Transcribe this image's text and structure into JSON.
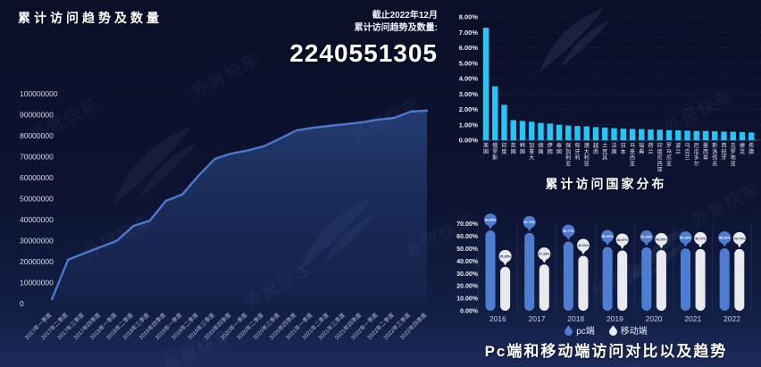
{
  "watermark": {
    "text": "外贸快车"
  },
  "header": {
    "title": "累计访问趋势及数量",
    "note_line1": "截止2022年12月",
    "note_line2": "累计访问趋势及数量:",
    "total": "2240551305"
  },
  "chart_data": [
    {
      "type": "line",
      "title": "累计访问趋势及数量",
      "x": [
        "2017年一季度",
        "2017年二季度",
        "2017年三季度",
        "2017年四季度",
        "2018年一季度",
        "2018年二季度",
        "2018年三季度",
        "2018年四季度",
        "2019年一季度",
        "2019年二季度",
        "2019年三季度",
        "2019年四季度",
        "2020年一季度",
        "2020年二季度",
        "2020年三季度",
        "2020年四季度",
        "2021年一季度",
        "2021年二季度",
        "2021年三季度",
        "2021年四季度",
        "2022年一季度",
        "2022年二季度",
        "2022年三季度",
        "2022年四季度"
      ],
      "values": [
        2000000,
        21000000,
        24000000,
        27000000,
        30000000,
        37000000,
        39500000,
        49000000,
        52000000,
        61000000,
        69000000,
        71500000,
        73000000,
        75000000,
        78700000,
        82500000,
        83800000,
        84700000,
        85500000,
        86400000,
        87700000,
        88500000,
        91500000,
        92000000
      ],
      "ylim": [
        0,
        100000000
      ],
      "ytick_labels": [
        "0",
        "10000000",
        "20000000",
        "30000000",
        "40000000",
        "50000000",
        "60000000",
        "70000000",
        "80000000",
        "90000000",
        "100000000"
      ],
      "line_color": "#4a79cf",
      "area_color": "#3e6fc4",
      "grid": false,
      "legend_position": "none"
    },
    {
      "type": "bar",
      "title": "累计访问国家分布",
      "categories": [
        "美国",
        "俄罗斯",
        "印度",
        "英国",
        "韩国",
        "加拿大",
        "德国",
        "伊朗",
        "泰国",
        "保加利亚",
        "匈牙利",
        "澳大利亚",
        "越南",
        "土耳其",
        "法国",
        "日本",
        "马来西亚",
        "瑞典",
        "荷兰",
        "印度尼西亚",
        "罗马尼亚",
        "波兰",
        "乌克兰",
        "厄瓜多尔",
        "墨西哥",
        "斯洛伐克",
        "西班牙",
        "克罗地亚",
        "捷克",
        "希腊"
      ],
      "values": [
        7.3,
        3.5,
        2.3,
        1.3,
        1.25,
        1.2,
        1.12,
        1.08,
        1.0,
        0.95,
        0.92,
        0.9,
        0.85,
        0.82,
        0.78,
        0.75,
        0.73,
        0.72,
        0.7,
        0.68,
        0.65,
        0.64,
        0.62,
        0.6,
        0.6,
        0.58,
        0.56,
        0.55,
        0.52,
        0.5
      ],
      "unit": "%",
      "ylim": [
        0,
        8
      ],
      "ytick_labels": [
        "0.00%",
        "1.00%",
        "2.00%",
        "3.00%",
        "4.00%",
        "5.00%",
        "6.00%",
        "7.00%",
        "8.00%"
      ],
      "bar_color": "#25c5f8",
      "grid": "dotted",
      "legend_position": "none"
    },
    {
      "type": "bar",
      "title": "Pc端和移动端访问对比以及趋势",
      "categories": [
        "2016",
        "2017",
        "2018",
        "2019",
        "2020",
        "2021",
        "2022"
      ],
      "series": [
        {
          "name": "pc端",
          "color": "#4d7cd1",
          "values": [
            64.65,
            62.72,
            55.77,
            51.43,
            51.05,
            50.29,
            50.26
          ]
        },
        {
          "name": "移动端",
          "color": "#e9eaee",
          "values": [
            35.35,
            37.28,
            44.23,
            48.57,
            48.95,
            49.71,
            49.74
          ]
        }
      ],
      "unit": "%",
      "ylim": [
        0,
        70
      ],
      "ytick_labels": [
        "0.00%",
        "10.00%",
        "20.00%",
        "30.00%",
        "40.00%",
        "50.00%",
        "60.00%",
        "70.00%"
      ],
      "legend_position": "bottom"
    }
  ]
}
